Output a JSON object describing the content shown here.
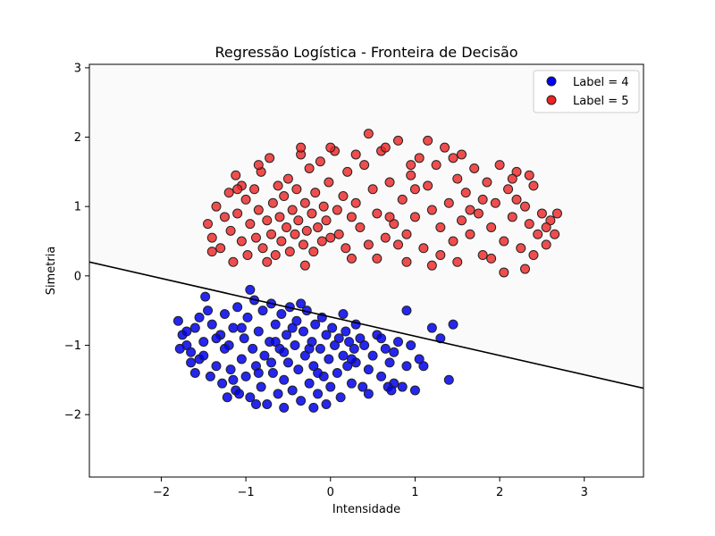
{
  "chart_data": {
    "type": "scatter",
    "title": "Regressão Logística - Fronteira de Decisão",
    "xlabel": "Intensidade",
    "ylabel": "Simetria",
    "xlim": [
      -2.85,
      3.7
    ],
    "ylim": [
      -2.9,
      3.05
    ],
    "xticks": [
      -2,
      -1,
      0,
      1,
      2,
      3
    ],
    "yticks": [
      -2,
      -1,
      0,
      1,
      2,
      3
    ],
    "tick_labels_x": [
      "−2",
      "−1",
      "0",
      "1",
      "2",
      "3"
    ],
    "tick_labels_y": [
      "−2",
      "−1",
      "0",
      "1",
      "2",
      "3"
    ],
    "legend_position": "top-right",
    "background": {
      "above_boundary": "#fafafa",
      "below_boundary": "#ffffff"
    },
    "decision_boundary": {
      "x": [
        -2.85,
        3.7
      ],
      "y": [
        0.2,
        -1.62
      ],
      "color": "#000000"
    },
    "series": [
      {
        "name": "Label = 4",
        "color": "#0000ee",
        "edge": "#222222",
        "points": [
          [
            -1.8,
            -0.65
          ],
          [
            -1.75,
            -0.85
          ],
          [
            -1.7,
            -1.0
          ],
          [
            -1.65,
            -1.1
          ],
          [
            -1.6,
            -0.75
          ],
          [
            -1.55,
            -1.2
          ],
          [
            -1.5,
            -0.95
          ],
          [
            -1.45,
            -0.5
          ],
          [
            -1.42,
            -1.45
          ],
          [
            -1.4,
            -0.7
          ],
          [
            -1.35,
            -1.3
          ],
          [
            -1.3,
            -0.85
          ],
          [
            -1.28,
            -1.55
          ],
          [
            -1.25,
            -0.55
          ],
          [
            -1.2,
            -1.0
          ],
          [
            -1.18,
            -1.35
          ],
          [
            -1.15,
            -0.75
          ],
          [
            -1.12,
            -1.65
          ],
          [
            -1.1,
            -0.45
          ],
          [
            -1.05,
            -1.2
          ],
          [
            -1.02,
            -0.9
          ],
          [
            -1.0,
            -1.45
          ],
          [
            -0.98,
            -0.6
          ],
          [
            -0.95,
            -1.75
          ],
          [
            -0.92,
            -1.05
          ],
          [
            -0.9,
            -0.35
          ],
          [
            -0.88,
            -1.3
          ],
          [
            -0.85,
            -0.8
          ],
          [
            -0.82,
            -1.6
          ],
          [
            -0.8,
            -0.5
          ],
          [
            -0.78,
            -1.15
          ],
          [
            -0.75,
            -1.85
          ],
          [
            -0.72,
            -0.95
          ],
          [
            -0.7,
            -0.4
          ],
          [
            -0.68,
            -1.4
          ],
          [
            -0.65,
            -0.7
          ],
          [
            -0.62,
            -1.7
          ],
          [
            -0.6,
            -1.05
          ],
          [
            -0.58,
            -0.55
          ],
          [
            -0.55,
            -1.5
          ],
          [
            -0.52,
            -0.85
          ],
          [
            -0.5,
            -1.25
          ],
          [
            -0.48,
            -0.45
          ],
          [
            -0.45,
            -1.65
          ],
          [
            -0.42,
            -1.0
          ],
          [
            -0.4,
            -0.65
          ],
          [
            -0.38,
            -1.35
          ],
          [
            -0.35,
            -1.8
          ],
          [
            -0.32,
            -0.8
          ],
          [
            -0.3,
            -1.15
          ],
          [
            -0.28,
            -0.5
          ],
          [
            -0.25,
            -1.55
          ],
          [
            -0.22,
            -0.95
          ],
          [
            -0.2,
            -1.3
          ],
          [
            -0.18,
            -0.7
          ],
          [
            -0.15,
            -1.7
          ],
          [
            -0.12,
            -1.05
          ],
          [
            -0.1,
            -0.6
          ],
          [
            -0.08,
            -1.45
          ],
          [
            -0.05,
            -0.85
          ],
          [
            -0.02,
            -1.2
          ],
          [
            0.0,
            -1.6
          ],
          [
            0.02,
            -0.75
          ],
          [
            0.05,
            -1.0
          ],
          [
            0.08,
            -1.4
          ],
          [
            0.1,
            -0.9
          ],
          [
            0.12,
            -1.75
          ],
          [
            0.15,
            -1.15
          ],
          [
            0.18,
            -0.8
          ],
          [
            0.2,
            -1.3
          ],
          [
            0.22,
            -0.95
          ],
          [
            0.25,
            -1.55
          ],
          [
            0.28,
            -1.05
          ],
          [
            0.3,
            -1.25
          ],
          [
            0.35,
            -0.9
          ],
          [
            0.38,
            -1.6
          ],
          [
            0.4,
            -1.0
          ],
          [
            0.45,
            -1.35
          ],
          [
            0.5,
            -1.15
          ],
          [
            0.55,
            -0.85
          ],
          [
            0.6,
            -1.45
          ],
          [
            0.65,
            -1.05
          ],
          [
            0.7,
            -1.25
          ],
          [
            0.75,
            -1.55
          ],
          [
            0.8,
            -0.95
          ],
          [
            0.85,
            -1.6
          ],
          [
            0.9,
            -1.3
          ],
          [
            0.95,
            -1.0
          ],
          [
            1.0,
            -1.65
          ],
          [
            1.05,
            -1.2
          ],
          [
            -1.78,
            -1.05
          ],
          [
            -1.6,
            -1.4
          ],
          [
            -1.48,
            -0.3
          ],
          [
            -1.22,
            -1.75
          ],
          [
            -0.95,
            -0.2
          ],
          [
            -0.7,
            -1.25
          ],
          [
            -0.35,
            -0.4
          ],
          [
            0.15,
            -0.55
          ],
          [
            0.45,
            -1.7
          ],
          [
            0.9,
            -0.5
          ],
          [
            1.1,
            -1.3
          ],
          [
            1.2,
            -0.75
          ],
          [
            1.3,
            -0.9
          ],
          [
            1.4,
            -1.5
          ],
          [
            1.45,
            -0.7
          ],
          [
            -1.35,
            -0.9
          ],
          [
            -1.05,
            -0.75
          ],
          [
            -0.65,
            -0.95
          ],
          [
            -0.25,
            -1.05
          ],
          [
            0.3,
            -0.7
          ],
          [
            -1.5,
            -1.15
          ],
          [
            -1.15,
            -1.5
          ],
          [
            -0.85,
            -1.4
          ],
          [
            -0.55,
            -1.1
          ],
          [
            -0.15,
            -1.4
          ],
          [
            0.25,
            -1.2
          ],
          [
            0.6,
            -0.9
          ],
          [
            0.75,
            -1.1
          ],
          [
            -0.45,
            -0.75
          ],
          [
            -1.25,
            -1.05
          ],
          [
            -0.2,
            -1.9
          ],
          [
            -0.05,
            -1.85
          ],
          [
            -0.55,
            -1.9
          ],
          [
            -0.88,
            -1.85
          ],
          [
            -1.08,
            -1.7
          ],
          [
            0.68,
            -1.6
          ],
          [
            0.72,
            -1.65
          ],
          [
            -1.65,
            -1.25
          ],
          [
            -1.7,
            -0.8
          ],
          [
            -1.55,
            -0.6
          ]
        ]
      },
      {
        "name": "Label = 5",
        "color": "#ee2222",
        "edge": "#222222",
        "points": [
          [
            -1.45,
            0.75
          ],
          [
            -1.4,
            0.55
          ],
          [
            -1.35,
            1.0
          ],
          [
            -1.3,
            0.4
          ],
          [
            -1.25,
            0.85
          ],
          [
            -1.2,
            1.2
          ],
          [
            -1.18,
            0.65
          ],
          [
            -1.15,
            0.2
          ],
          [
            -1.12,
            1.45
          ],
          [
            -1.1,
            0.9
          ],
          [
            -1.05,
            0.5
          ],
          [
            -1.0,
            1.1
          ],
          [
            -0.98,
            0.3
          ],
          [
            -0.95,
            0.75
          ],
          [
            -0.9,
            1.25
          ],
          [
            -0.88,
            0.55
          ],
          [
            -0.85,
            0.95
          ],
          [
            -0.82,
            1.5
          ],
          [
            -0.8,
            0.4
          ],
          [
            -0.75,
            0.8
          ],
          [
            -0.72,
            1.7
          ],
          [
            -0.7,
            0.6
          ],
          [
            -0.68,
            1.05
          ],
          [
            -0.65,
            0.3
          ],
          [
            -0.62,
            1.3
          ],
          [
            -0.6,
            0.85
          ],
          [
            -0.58,
            0.5
          ],
          [
            -0.55,
            1.15
          ],
          [
            -0.52,
            0.7
          ],
          [
            -0.5,
            1.4
          ],
          [
            -0.48,
            0.35
          ],
          [
            -0.45,
            0.95
          ],
          [
            -0.42,
            0.6
          ],
          [
            -0.4,
            1.25
          ],
          [
            -0.38,
            0.8
          ],
          [
            -0.35,
            1.75
          ],
          [
            -0.32,
            0.45
          ],
          [
            -0.3,
            1.05
          ],
          [
            -0.28,
            0.65
          ],
          [
            -0.25,
            1.55
          ],
          [
            -0.22,
            0.9
          ],
          [
            -0.2,
            0.35
          ],
          [
            -0.18,
            1.2
          ],
          [
            -0.15,
            0.7
          ],
          [
            -0.12,
            1.65
          ],
          [
            -0.1,
            0.5
          ],
          [
            -0.08,
            1.0
          ],
          [
            -0.05,
            0.8
          ],
          [
            -0.02,
            1.35
          ],
          [
            0.0,
            0.55
          ],
          [
            0.05,
            1.8
          ],
          [
            0.08,
            0.95
          ],
          [
            0.1,
            0.6
          ],
          [
            0.15,
            1.15
          ],
          [
            0.18,
            0.4
          ],
          [
            0.2,
            1.5
          ],
          [
            0.25,
            0.85
          ],
          [
            0.3,
            1.05
          ],
          [
            0.35,
            0.7
          ],
          [
            0.4,
            1.6
          ],
          [
            0.45,
            0.45
          ],
          [
            0.5,
            1.25
          ],
          [
            0.55,
            0.9
          ],
          [
            0.6,
            1.8
          ],
          [
            0.65,
            0.55
          ],
          [
            0.7,
            1.35
          ],
          [
            0.75,
            0.75
          ],
          [
            0.8,
            1.95
          ],
          [
            0.85,
            1.1
          ],
          [
            0.9,
            0.6
          ],
          [
            0.95,
            1.45
          ],
          [
            1.0,
            0.85
          ],
          [
            1.05,
            1.7
          ],
          [
            1.1,
            0.4
          ],
          [
            1.15,
            1.3
          ],
          [
            1.2,
            0.95
          ],
          [
            1.25,
            1.6
          ],
          [
            1.3,
            0.7
          ],
          [
            1.35,
            1.85
          ],
          [
            1.4,
            1.05
          ],
          [
            1.45,
            0.5
          ],
          [
            1.5,
            1.4
          ],
          [
            1.55,
            0.8
          ],
          [
            1.6,
            1.2
          ],
          [
            1.65,
            0.6
          ],
          [
            1.7,
            1.55
          ],
          [
            1.75,
            0.9
          ],
          [
            1.8,
            0.3
          ],
          [
            1.85,
            1.35
          ],
          [
            1.9,
            0.7
          ],
          [
            1.95,
            1.05
          ],
          [
            2.0,
            1.6
          ],
          [
            2.05,
            0.5
          ],
          [
            2.1,
            1.25
          ],
          [
            2.15,
            0.85
          ],
          [
            2.2,
            1.5
          ],
          [
            2.25,
            0.4
          ],
          [
            2.3,
            1.0
          ],
          [
            2.35,
            0.75
          ],
          [
            2.4,
            1.3
          ],
          [
            2.45,
            0.6
          ],
          [
            2.5,
            0.9
          ],
          [
            2.55,
            0.45
          ],
          [
            2.6,
            0.8
          ],
          [
            2.65,
            0.6
          ],
          [
            2.68,
            0.9
          ],
          [
            2.55,
            0.7
          ],
          [
            2.3,
            0.1
          ],
          [
            2.05,
            0.05
          ],
          [
            1.9,
            0.25
          ],
          [
            -1.4,
            0.35
          ],
          [
            -1.05,
            1.3
          ],
          [
            -0.75,
            0.2
          ],
          [
            -0.3,
            0.15
          ],
          [
            0.25,
            0.25
          ],
          [
            0.55,
            0.25
          ],
          [
            0.9,
            0.2
          ],
          [
            1.2,
            0.15
          ],
          [
            1.5,
            0.2
          ],
          [
            0.45,
            2.05
          ],
          [
            0.65,
            1.85
          ],
          [
            0.95,
            1.6
          ],
          [
            1.15,
            1.95
          ],
          [
            1.45,
            1.7
          ],
          [
            1.55,
            1.75
          ],
          [
            0.0,
            1.85
          ],
          [
            0.3,
            1.75
          ],
          [
            -0.35,
            1.85
          ],
          [
            -0.85,
            1.6
          ],
          [
            -1.1,
            1.25
          ],
          [
            0.7,
            0.85
          ],
          [
            0.8,
            0.45
          ],
          [
            1.0,
            1.25
          ],
          [
            1.3,
            0.3
          ],
          [
            1.65,
            0.95
          ],
          [
            1.8,
            1.1
          ],
          [
            2.15,
            1.4
          ],
          [
            2.35,
            1.45
          ],
          [
            2.2,
            1.1
          ],
          [
            2.4,
            0.3
          ]
        ]
      }
    ]
  }
}
